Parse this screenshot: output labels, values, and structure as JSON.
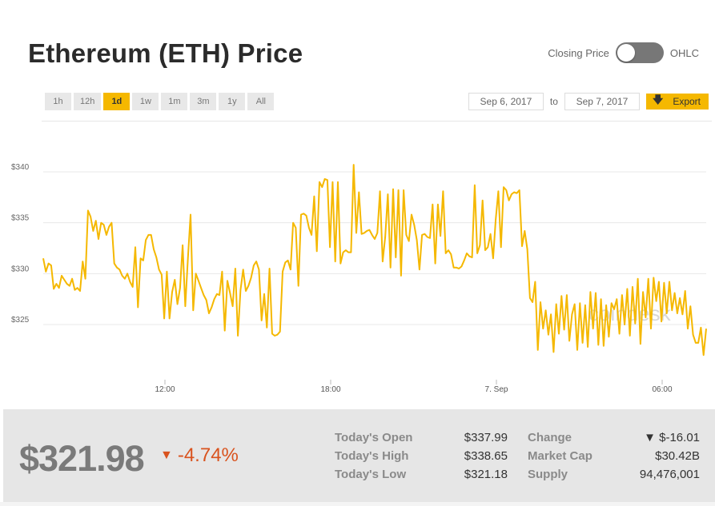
{
  "title": "Ethereum (ETH) Price",
  "toggle": {
    "left_label": "Closing Price",
    "right_label": "OHLC"
  },
  "ranges": [
    "1h",
    "12h",
    "1d",
    "1w",
    "1m",
    "3m",
    "1y",
    "All"
  ],
  "active_range": "1d",
  "dates": {
    "from": "Sep 6, 2017",
    "to_label": "to",
    "to": "Sep 7, 2017"
  },
  "export_label": "Export",
  "watermark": "coindesk",
  "colors": {
    "line": "#f5b800",
    "accent": "#f5b800",
    "down": "#d9531e"
  },
  "chart_data": {
    "type": "line",
    "title": "",
    "xlabel": "",
    "ylabel": "",
    "x_ticks": [
      "12:00",
      "18:00",
      "7. Sep",
      "06:00"
    ],
    "y_ticks": [
      "$325",
      "$330",
      "$335",
      "$340"
    ],
    "ylim": [
      321,
      343
    ],
    "grid": true,
    "series": [
      {
        "values": [
          331.5,
          330.2,
          331,
          330.8,
          328.5,
          329,
          328.6,
          329.8,
          329.4,
          329,
          328.8,
          329.5,
          328.4,
          328.6,
          328.3,
          331.2,
          329.5,
          336.2,
          335.6,
          334.2,
          335.2,
          333.4,
          335,
          334.8,
          333.8,
          334.6,
          335,
          331,
          330.6,
          330.4,
          329.8,
          329.5,
          330,
          329.2,
          328.7,
          332.6,
          326.7,
          331.5,
          331.3,
          333.3,
          333.8,
          333.8,
          332.4,
          331.6,
          330.4,
          329.9,
          325.6,
          330.2,
          325.6,
          328.2,
          329.4,
          327,
          328.6,
          332.8,
          326.8,
          331.5,
          335.8,
          326.4,
          330,
          329.3,
          328.6,
          327.9,
          327.4,
          326.1,
          326.7,
          327.5,
          328,
          327.9,
          330.2,
          324.4,
          329.3,
          328.1,
          326.8,
          330.5,
          323.9,
          328.4,
          330.4,
          328.3,
          328.8,
          329.6,
          330.8,
          331.2,
          330.4,
          325.4,
          328,
          324.7,
          330.5,
          324.1,
          323.9,
          324,
          324.3,
          330.2,
          331.1,
          331.3,
          330.4,
          335,
          334.5,
          328.8,
          335.8,
          335.9,
          335.7,
          334.5,
          333.8,
          337.6,
          332.2,
          339,
          338.5,
          339.3,
          339.2,
          332.6,
          339,
          331.2,
          339,
          331,
          332.1,
          332.3,
          332.1,
          332.1,
          340.7,
          334,
          338,
          333.9,
          334,
          334.2,
          334.3,
          333.8,
          333.4,
          334,
          338.1,
          331.2,
          333.6,
          337.8,
          330.6,
          338.3,
          331.6,
          338.2,
          329.8,
          338.2,
          333.8,
          333.2,
          335.8,
          334.8,
          333.3,
          330.4,
          333.8,
          333.9,
          333.6,
          333.5,
          336.8,
          331,
          336.8,
          333.7,
          338.1,
          332,
          332.3,
          331.9,
          330.6,
          330.6,
          330.5,
          330.7,
          331.3,
          332,
          331.7,
          331.6,
          338.7,
          332,
          332.8,
          337.2,
          332.3,
          332.6,
          333.9,
          331.5,
          335.3,
          338.1,
          332.6,
          338.5,
          338.2,
          337.2,
          337.8,
          338,
          337.9,
          338.2,
          332.7,
          334.2,
          332.4,
          327.6,
          327.2,
          329.2,
          322.5,
          327.2,
          324.6,
          326.4,
          324,
          326,
          322.3,
          327,
          324.1,
          327.8,
          324.5,
          327.9,
          323.4,
          326,
          327,
          322.5,
          327.1,
          323.2,
          326.9,
          322.8,
          328.2,
          324.6,
          328.1,
          323,
          327.5,
          322.9,
          326.9,
          323.8,
          327.1,
          326.5,
          327.5,
          324.1,
          327.9,
          325,
          328.5,
          323.9,
          328.7,
          325.1,
          329.5,
          323.1,
          328.2,
          325.7,
          329.5,
          324.6,
          329.6,
          327.3,
          329.2,
          325.3,
          329.1,
          326.1,
          329.2,
          326.4,
          328.1,
          326.1,
          327.6,
          326,
          328.3,
          324.6,
          326.8,
          324,
          323.2,
          323.2,
          324.7,
          322,
          324.6
        ]
      }
    ]
  },
  "footer": {
    "price": "$321.98",
    "change_pct": "-4.74%",
    "stats": [
      {
        "label": "Today's Open",
        "value": "$337.99"
      },
      {
        "label": "Today's High",
        "value": "$338.65"
      },
      {
        "label": "Today's Low",
        "value": "$321.18"
      }
    ],
    "stats2": [
      {
        "label": "Change",
        "value": "$-16.01"
      },
      {
        "label": "Market Cap",
        "value": "$30.42B"
      },
      {
        "label": "Supply",
        "value": "94,476,001"
      }
    ]
  }
}
